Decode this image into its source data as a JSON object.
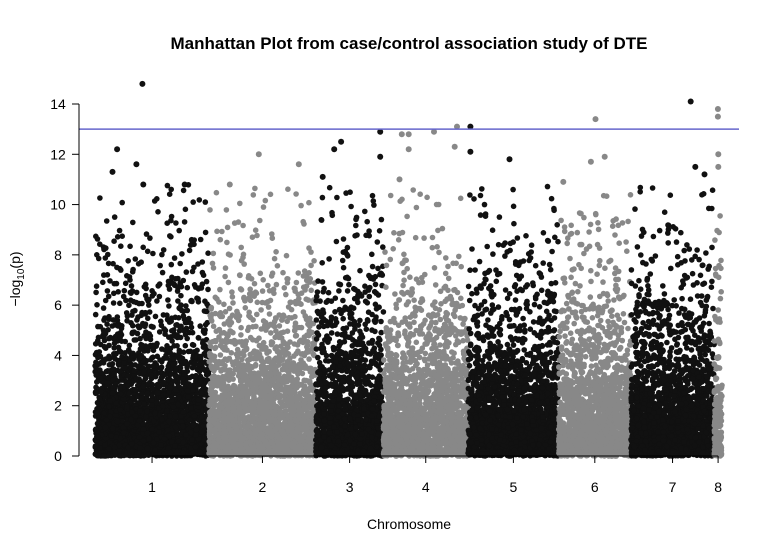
{
  "chart_data": {
    "type": "scatter",
    "title": "Manhattan Plot from case/control association study of DTE",
    "xlabel": "Chromosome",
    "ylabel": "-log10(p)",
    "ylabel_parts": {
      "prefix": "−log",
      "sub": "10",
      "suffix": "(p)"
    },
    "ylim": [
      0,
      14.6
    ],
    "yticks": [
      0,
      2,
      4,
      6,
      8,
      10,
      12,
      14
    ],
    "threshold": 13,
    "threshold_color": "#6666cc",
    "grid": false,
    "legend": "none",
    "colors": {
      "odd": "#111111",
      "even": "#888888"
    },
    "chromosomes": [
      {
        "label": "1",
        "length": 248
      },
      {
        "label": "2",
        "length": 232
      },
      {
        "label": "3",
        "length": 147
      },
      {
        "label": "4",
        "length": 184
      },
      {
        "label": "5",
        "length": 197
      },
      {
        "label": "6",
        "length": 157
      },
      {
        "label": "7",
        "length": 181
      },
      {
        "label": "8",
        "length": 17
      }
    ],
    "top_hits": [
      {
        "chr": "1",
        "pos": 103,
        "y": 14.8
      },
      {
        "chr": "1",
        "pos": 48,
        "y": 12.2
      },
      {
        "chr": "1",
        "pos": 90,
        "y": 11.6
      },
      {
        "chr": "1",
        "pos": 38,
        "y": 11.3
      },
      {
        "chr": "1",
        "pos": 105,
        "y": 10.8
      },
      {
        "chr": "1",
        "pos": 195,
        "y": 10.8
      },
      {
        "chr": "2",
        "pos": 108,
        "y": 12.0
      },
      {
        "chr": "2",
        "pos": 195,
        "y": 11.6
      },
      {
        "chr": "2",
        "pos": 45,
        "y": 10.8
      },
      {
        "chr": "3",
        "pos": 55,
        "y": 12.5
      },
      {
        "chr": "3",
        "pos": 40,
        "y": 12.2
      },
      {
        "chr": "3",
        "pos": 140,
        "y": 12.9
      },
      {
        "chr": "3",
        "pos": 140,
        "y": 11.9
      },
      {
        "chr": "3",
        "pos": 15,
        "y": 11.1
      },
      {
        "chr": "4",
        "pos": 40,
        "y": 12.8
      },
      {
        "chr": "4",
        "pos": 55,
        "y": 12.8
      },
      {
        "chr": "4",
        "pos": 55,
        "y": 12.2
      },
      {
        "chr": "4",
        "pos": 110,
        "y": 12.9
      },
      {
        "chr": "4",
        "pos": 160,
        "y": 13.1
      },
      {
        "chr": "4",
        "pos": 155,
        "y": 12.3
      },
      {
        "chr": "4",
        "pos": 35,
        "y": 11.0
      },
      {
        "chr": "5",
        "pos": 5,
        "y": 13.1
      },
      {
        "chr": "5",
        "pos": 5,
        "y": 12.1
      },
      {
        "chr": "5",
        "pos": 90,
        "y": 11.8
      },
      {
        "chr": "6",
        "pos": 80,
        "y": 13.4
      },
      {
        "chr": "6",
        "pos": 70,
        "y": 11.7
      },
      {
        "chr": "6",
        "pos": 100,
        "y": 11.9
      },
      {
        "chr": "6",
        "pos": 10,
        "y": 10.9
      },
      {
        "chr": "7",
        "pos": 130,
        "y": 14.1
      },
      {
        "chr": "7",
        "pos": 140,
        "y": 11.5
      },
      {
        "chr": "7",
        "pos": 160,
        "y": 11.2
      },
      {
        "chr": "8",
        "pos": 8,
        "y": 13.8
      },
      {
        "chr": "8",
        "pos": 8,
        "y": 13.5
      },
      {
        "chr": "8",
        "pos": 9,
        "y": 12.0
      },
      {
        "chr": "8",
        "pos": 9,
        "y": 11.5
      }
    ]
  }
}
